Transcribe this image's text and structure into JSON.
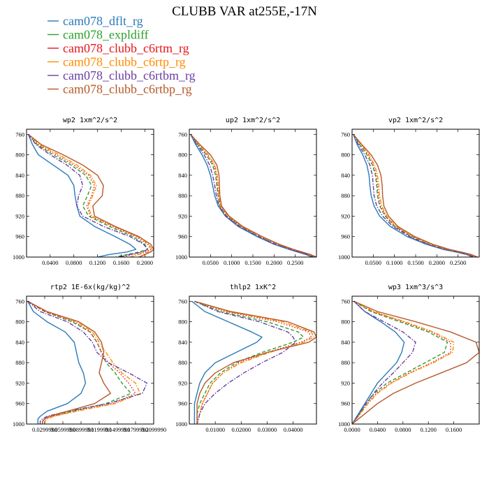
{
  "title": "CLUBB VAR at255E,-17N",
  "colors": {
    "cam078_dflt_rg": "#2a7ab8",
    "cam078_expldiff": "#2ca02c",
    "cam078_clubb_c6rtm_rg": "#e3171d",
    "cam078_clubb_c6rtp_rg": "#ff8c00",
    "cam078_clubb_c6rtbm_rg": "#6a3ea1",
    "cam078_clubb_c6rtbp_rg": "#b5592a"
  },
  "legend": [
    {
      "name": "cam078_dflt_rg",
      "color": "#2a7ab8",
      "dash": "solid"
    },
    {
      "name": "cam078_expldiff",
      "color": "#2ca02c",
      "dash": "dash"
    },
    {
      "name": "cam078_clubb_c6rtm_rg",
      "color": "#e3171d",
      "dash": "dot"
    },
    {
      "name": "cam078_clubb_c6rtp_rg",
      "color": "#ff8c00",
      "dash": "dashdot"
    },
    {
      "name": "cam078_clubb_c6rtbm_rg",
      "color": "#6a3ea1",
      "dash": "dashdot"
    },
    {
      "name": "cam078_clubb_c6rtbp_rg",
      "color": "#b5592a",
      "dash": "solid"
    }
  ],
  "chart_data": [
    {
      "type": "line",
      "title": "wp2  1xm^2/s^2",
      "xlabel": "",
      "ylabel": "",
      "xlim": [
        0.0,
        0.215
      ],
      "ylim": [
        1000,
        750
      ],
      "yticks": [
        760,
        800,
        840,
        880,
        920,
        960,
        1000
      ],
      "xticks": [
        0.04,
        0.08,
        0.12,
        0.16,
        0.2
      ],
      "xticklabels": [
        "0.0400",
        "0.0800",
        "0.1200",
        "0.1600",
        "0.2000"
      ],
      "y": [
        760,
        780,
        800,
        820,
        840,
        860,
        880,
        900,
        920,
        940,
        960,
        975,
        985,
        990,
        995,
        1000
      ],
      "series": [
        {
          "name": "cam078_dflt_rg",
          "values": [
            0.003,
            0.01,
            0.02,
            0.045,
            0.07,
            0.08,
            0.082,
            0.085,
            0.09,
            0.115,
            0.15,
            0.175,
            0.185,
            0.17,
            0.14,
            0.12
          ]
        },
        {
          "name": "cam078_expldiff",
          "values": [
            0.003,
            0.018,
            0.045,
            0.075,
            0.1,
            0.11,
            0.103,
            0.095,
            0.105,
            0.14,
            0.18,
            0.2,
            0.205,
            0.19,
            0.17,
            0.15
          ]
        },
        {
          "name": "cam078_clubb_c6rtm_rg",
          "values": [
            0.003,
            0.02,
            0.05,
            0.08,
            0.105,
            0.115,
            0.11,
            0.102,
            0.108,
            0.145,
            0.185,
            0.205,
            0.21,
            0.2,
            0.18,
            0.16
          ]
        },
        {
          "name": "cam078_clubb_c6rtp_rg",
          "values": [
            0.003,
            0.022,
            0.055,
            0.085,
            0.108,
            0.118,
            0.112,
            0.104,
            0.11,
            0.148,
            0.188,
            0.207,
            0.212,
            0.205,
            0.19,
            0.175
          ]
        },
        {
          "name": "cam078_clubb_c6rtbm_rg",
          "values": [
            0.003,
            0.016,
            0.04,
            0.068,
            0.09,
            0.095,
            0.088,
            0.085,
            0.095,
            0.13,
            0.175,
            0.198,
            0.205,
            0.195,
            0.175,
            0.155
          ]
        },
        {
          "name": "cam078_clubb_c6rtbp_rg",
          "values": [
            0.003,
            0.025,
            0.062,
            0.095,
            0.12,
            0.13,
            0.128,
            0.112,
            0.115,
            0.15,
            0.19,
            0.21,
            0.215,
            0.21,
            0.2,
            0.19
          ]
        }
      ]
    },
    {
      "type": "line",
      "title": "up2  1xm^2/s^2",
      "xlabel": "",
      "ylabel": "",
      "xlim": [
        0.0,
        0.3
      ],
      "ylim": [
        1000,
        750
      ],
      "yticks": [
        760,
        800,
        840,
        880,
        920,
        960,
        1000
      ],
      "xticks": [
        0.05,
        0.1,
        0.15,
        0.2,
        0.25
      ],
      "xticklabels": [
        "0.0500",
        "0.1000",
        "0.1500",
        "0.2000",
        "0.2500"
      ],
      "y": [
        760,
        780,
        800,
        820,
        840,
        860,
        880,
        900,
        920,
        940,
        960,
        975,
        985,
        990,
        995,
        1000
      ],
      "series": [
        {
          "name": "cam078_dflt_rg",
          "values": [
            0.003,
            0.015,
            0.03,
            0.042,
            0.05,
            0.055,
            0.06,
            0.068,
            0.085,
            0.115,
            0.16,
            0.2,
            0.235,
            0.255,
            0.275,
            0.29
          ]
        },
        {
          "name": "cam078_expldiff",
          "values": [
            0.003,
            0.02,
            0.04,
            0.055,
            0.062,
            0.065,
            0.068,
            0.072,
            0.088,
            0.12,
            0.165,
            0.205,
            0.24,
            0.26,
            0.28,
            0.295
          ]
        },
        {
          "name": "cam078_clubb_c6rtm_rg",
          "values": [
            0.003,
            0.022,
            0.042,
            0.058,
            0.064,
            0.066,
            0.068,
            0.073,
            0.09,
            0.122,
            0.168,
            0.208,
            0.242,
            0.262,
            0.282,
            0.297
          ]
        },
        {
          "name": "cam078_clubb_c6rtp_rg",
          "values": [
            0.003,
            0.023,
            0.045,
            0.06,
            0.066,
            0.068,
            0.07,
            0.074,
            0.092,
            0.124,
            0.17,
            0.21,
            0.244,
            0.264,
            0.284,
            0.299
          ]
        },
        {
          "name": "cam078_clubb_c6rtbm_rg",
          "values": [
            0.003,
            0.018,
            0.035,
            0.048,
            0.055,
            0.06,
            0.064,
            0.07,
            0.086,
            0.118,
            0.163,
            0.203,
            0.238,
            0.258,
            0.278,
            0.293
          ]
        },
        {
          "name": "cam078_clubb_c6rtbp_rg",
          "values": [
            0.003,
            0.025,
            0.05,
            0.065,
            0.07,
            0.071,
            0.072,
            0.076,
            0.094,
            0.126,
            0.172,
            0.212,
            0.246,
            0.266,
            0.286,
            0.3
          ]
        }
      ]
    },
    {
      "type": "line",
      "title": "vp2  1xm^2/s^2",
      "xlabel": "",
      "ylabel": "",
      "xlim": [
        0.0,
        0.3
      ],
      "ylim": [
        1000,
        750
      ],
      "yticks": [
        760,
        800,
        840,
        880,
        920,
        960,
        1000
      ],
      "xticks": [
        0.05,
        0.1,
        0.15,
        0.2,
        0.25
      ],
      "xticklabels": [
        "0.0500",
        "0.1000",
        "0.1500",
        "0.2000",
        "0.2500"
      ],
      "y": [
        760,
        780,
        800,
        820,
        840,
        860,
        880,
        900,
        920,
        940,
        960,
        975,
        985,
        990,
        995,
        1000
      ],
      "series": [
        {
          "name": "cam078_dflt_rg",
          "values": [
            0.003,
            0.012,
            0.025,
            0.035,
            0.04,
            0.042,
            0.045,
            0.052,
            0.065,
            0.09,
            0.13,
            0.175,
            0.215,
            0.245,
            0.27,
            0.285
          ]
        },
        {
          "name": "cam078_expldiff",
          "values": [
            0.003,
            0.018,
            0.035,
            0.048,
            0.055,
            0.058,
            0.06,
            0.065,
            0.078,
            0.1,
            0.14,
            0.182,
            0.222,
            0.25,
            0.275,
            0.29
          ]
        },
        {
          "name": "cam078_clubb_c6rtm_rg",
          "values": [
            0.003,
            0.02,
            0.038,
            0.05,
            0.057,
            0.06,
            0.062,
            0.067,
            0.08,
            0.102,
            0.142,
            0.184,
            0.224,
            0.252,
            0.277,
            0.292
          ]
        },
        {
          "name": "cam078_clubb_c6rtp_rg",
          "values": [
            0.003,
            0.021,
            0.04,
            0.053,
            0.06,
            0.063,
            0.065,
            0.07,
            0.082,
            0.104,
            0.144,
            0.186,
            0.226,
            0.254,
            0.279,
            0.294
          ]
        },
        {
          "name": "cam078_clubb_c6rtbm_rg",
          "values": [
            0.003,
            0.015,
            0.03,
            0.042,
            0.048,
            0.05,
            0.052,
            0.058,
            0.072,
            0.096,
            0.136,
            0.178,
            0.218,
            0.247,
            0.272,
            0.288
          ]
        },
        {
          "name": "cam078_clubb_c6rtbp_rg",
          "values": [
            0.003,
            0.023,
            0.045,
            0.06,
            0.068,
            0.071,
            0.072,
            0.075,
            0.086,
            0.108,
            0.148,
            0.19,
            0.23,
            0.257,
            0.281,
            0.296
          ]
        }
      ]
    },
    {
      "type": "line",
      "title": "rtp2  1E-6x(kg/kg)^2",
      "xlabel": "",
      "ylabel": "",
      "xlim": [
        0.0,
        5.6
      ],
      "ylim": [
        1000,
        750
      ],
      "yticks": [
        760,
        800,
        840,
        880,
        920,
        960,
        1000
      ],
      "xticks": [
        0.8,
        1.6,
        2.4,
        3.2,
        4.0,
        4.8,
        5.6
      ],
      "xticklabels": [
        "0.0299990",
        "0.0599990",
        "0.0899990",
        "0.1199990",
        "0.1499990",
        "0.1799990",
        "0.2099990"
      ],
      "y": [
        760,
        780,
        800,
        820,
        840,
        860,
        880,
        900,
        920,
        940,
        960,
        975,
        985,
        990,
        995,
        1000
      ],
      "series": [
        {
          "name": "cam078_dflt_rg",
          "values": [
            0.05,
            0.3,
            0.9,
            1.7,
            2.1,
            2.2,
            2.3,
            2.5,
            2.6,
            2.4,
            1.8,
            0.9,
            0.6,
            0.5,
            0.5,
            0.5
          ]
        },
        {
          "name": "cam078_expldiff",
          "values": [
            0.05,
            0.8,
            2.0,
            2.8,
            3.1,
            3.3,
            3.5,
            3.9,
            4.2,
            4.6,
            3.5,
            2.0,
            1.0,
            0.8,
            0.7,
            0.7
          ]
        },
        {
          "name": "cam078_clubb_c6rtm_rg",
          "values": [
            0.05,
            0.8,
            2.1,
            2.8,
            3.1,
            3.3,
            3.6,
            4.1,
            4.5,
            4.8,
            3.8,
            2.1,
            1.1,
            0.8,
            0.7,
            0.7
          ]
        },
        {
          "name": "cam078_clubb_c6rtp_rg",
          "values": [
            0.05,
            0.9,
            2.2,
            2.9,
            3.2,
            3.5,
            3.8,
            4.2,
            4.8,
            5.0,
            3.9,
            2.2,
            1.2,
            0.9,
            0.8,
            0.8
          ]
        },
        {
          "name": "cam078_clubb_c6rtbm_rg",
          "values": [
            0.05,
            0.6,
            1.8,
            2.5,
            2.9,
            3.1,
            3.6,
            4.5,
            5.3,
            5.1,
            3.6,
            1.8,
            0.9,
            0.7,
            0.6,
            0.6
          ]
        },
        {
          "name": "cam078_clubb_c6rtbp_rg",
          "values": [
            0.05,
            0.9,
            2.3,
            3.0,
            3.3,
            3.4,
            3.3,
            3.2,
            3.4,
            3.7,
            3.0,
            1.8,
            1.0,
            0.8,
            0.7,
            0.7
          ]
        }
      ]
    },
    {
      "type": "line",
      "title": "thlp2  1xK^2",
      "xlabel": "",
      "ylabel": "",
      "xlim": [
        0.0,
        0.049
      ],
      "ylim": [
        1000,
        750
      ],
      "yticks": [
        760,
        800,
        840,
        880,
        920,
        960,
        1000
      ],
      "xticks": [
        0.01,
        0.02,
        0.03,
        0.04
      ],
      "xticklabels": [
        "0.01000",
        "0.02000",
        "0.03000",
        "0.04000"
      ],
      "y": [
        760,
        780,
        800,
        820,
        830,
        840,
        860,
        880,
        900,
        920,
        940,
        960,
        980,
        1000
      ],
      "series": [
        {
          "name": "cam078_dflt_rg",
          "values": [
            0.001,
            0.006,
            0.015,
            0.024,
            0.028,
            0.026,
            0.018,
            0.01,
            0.006,
            0.004,
            0.003,
            0.002,
            0.002,
            0.002
          ]
        },
        {
          "name": "cam078_expldiff",
          "values": [
            0.002,
            0.012,
            0.03,
            0.042,
            0.044,
            0.04,
            0.028,
            0.018,
            0.012,
            0.008,
            0.006,
            0.004,
            0.003,
            0.003
          ]
        },
        {
          "name": "cam078_clubb_c6rtm_rg",
          "values": [
            0.002,
            0.014,
            0.034,
            0.046,
            0.047,
            0.043,
            0.03,
            0.019,
            0.013,
            0.009,
            0.007,
            0.005,
            0.004,
            0.003
          ]
        },
        {
          "name": "cam078_clubb_c6rtp_rg",
          "values": [
            0.002,
            0.015,
            0.036,
            0.047,
            0.048,
            0.044,
            0.031,
            0.02,
            0.013,
            0.009,
            0.007,
            0.005,
            0.004,
            0.003
          ]
        },
        {
          "name": "cam078_clubb_c6rtbm_rg",
          "values": [
            0.002,
            0.011,
            0.027,
            0.038,
            0.04,
            0.041,
            0.036,
            0.028,
            0.021,
            0.015,
            0.01,
            0.006,
            0.004,
            0.003
          ]
        },
        {
          "name": "cam078_clubb_c6rtbp_rg",
          "values": [
            0.002,
            0.016,
            0.038,
            0.048,
            0.049,
            0.046,
            0.03,
            0.017,
            0.01,
            0.006,
            0.004,
            0.003,
            0.003,
            0.003
          ]
        }
      ]
    },
    {
      "type": "line",
      "title": "wp3  1xm^3/s^3",
      "xlabel": "",
      "ylabel": "",
      "xlim": [
        0.0,
        0.2
      ],
      "ylim": [
        1000,
        750
      ],
      "yticks": [
        760,
        800,
        840,
        880,
        920,
        960,
        1000
      ],
      "xticks": [
        0.0,
        0.04,
        0.08,
        0.12,
        0.16
      ],
      "xticklabels": [
        "0.0000",
        "0.0400",
        "0.0800",
        "0.1200",
        "0.1600"
      ],
      "y": [
        760,
        780,
        800,
        820,
        840,
        860,
        880,
        900,
        920,
        940,
        960,
        980,
        1000
      ],
      "series": [
        {
          "name": "cam078_dflt_rg",
          "values": [
            0.003,
            0.02,
            0.045,
            0.068,
            0.082,
            0.078,
            0.07,
            0.055,
            0.04,
            0.03,
            0.02,
            0.01,
            0.0
          ]
        },
        {
          "name": "cam078_expldiff",
          "values": [
            0.003,
            0.03,
            0.075,
            0.12,
            0.15,
            0.145,
            0.115,
            0.085,
            0.055,
            0.035,
            0.022,
            0.012,
            0.0
          ]
        },
        {
          "name": "cam078_clubb_c6rtm_rg",
          "values": [
            0.003,
            0.032,
            0.08,
            0.125,
            0.155,
            0.155,
            0.125,
            0.09,
            0.06,
            0.038,
            0.024,
            0.013,
            0.0
          ]
        },
        {
          "name": "cam078_clubb_c6rtp_rg",
          "values": [
            0.003,
            0.034,
            0.083,
            0.128,
            0.16,
            0.158,
            0.128,
            0.092,
            0.062,
            0.04,
            0.025,
            0.013,
            0.0
          ]
        },
        {
          "name": "cam078_clubb_c6rtbm_rg",
          "values": [
            0.003,
            0.02,
            0.05,
            0.08,
            0.1,
            0.095,
            0.08,
            0.065,
            0.048,
            0.034,
            0.022,
            0.011,
            0.0
          ]
        },
        {
          "name": "cam078_clubb_c6rtbp_rg",
          "values": [
            0.003,
            0.04,
            0.1,
            0.155,
            0.195,
            0.2,
            0.18,
            0.14,
            0.1,
            0.065,
            0.04,
            0.02,
            0.0
          ]
        }
      ]
    }
  ]
}
